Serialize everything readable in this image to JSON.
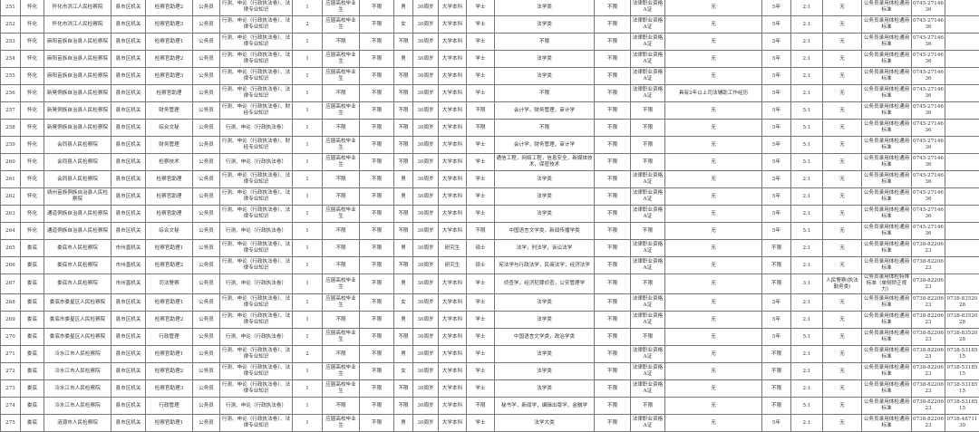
{
  "table": {
    "rows": [
      [
        "251",
        "怀化",
        "怀化市洪江人民检察院",
        "县市区机关",
        "检察官助理2",
        "公务员",
        "行测、申论（行政执法卷）、法律专业知识",
        "1",
        "应届高校毕业生",
        "不限",
        "男",
        "30周岁",
        "大学本科",
        "学士",
        "法学类",
        "不限",
        "法律职业资格A证",
        "无",
        "5年",
        "2:1",
        "无",
        "公务员录用体检通用标准",
        "0745-2714636",
        ""
      ],
      [
        "252",
        "怀化",
        "怀化市洪江人民检察院",
        "县市区机关",
        "检察官助理3",
        "公务员",
        "行测、申论（行政执法卷）、法律专业知识",
        "2",
        "应届高校毕业生",
        "不限",
        "女",
        "30周岁",
        "大学本科",
        "学士",
        "法学类",
        "不限",
        "法律职业资格A证",
        "无",
        "5年",
        "2:1",
        "无",
        "公务员录用体检通用标准",
        "0745-2714636",
        ""
      ],
      [
        "253",
        "怀化",
        "麻阳苗族自治县人民检察院",
        "县市区机关",
        "检察官助理1",
        "公务员",
        "行测、申论（行政执法卷）、法律专业知识",
        "1",
        "不限",
        "不限",
        "不限",
        "30周岁",
        "大学本科",
        "学士",
        "不限",
        "不限",
        "法律职业资格A证",
        "无",
        "5年",
        "2:1",
        "无",
        "公务员录用体检通用标准",
        "0745-2714636",
        ""
      ],
      [
        "254",
        "怀化",
        "麻阳苗族自治县人民检察院",
        "县市区机关",
        "检察官助理2",
        "公务员",
        "行测、申论（行政执法卷）、法律专业知识",
        "1",
        "应届高校毕业生",
        "不限",
        "男",
        "30周岁",
        "大学本科",
        "学士",
        "法学类",
        "不限",
        "法律职业资格A证",
        "无",
        "5年",
        "2:1",
        "无",
        "公务员录用体检通用标准",
        "0745-2714636",
        ""
      ],
      [
        "255",
        "怀化",
        "麻阳苗族自治县人民检察院",
        "县市区机关",
        "检察官助理3",
        "公务员",
        "行测、申论（行政执法卷）、法律专业知识",
        "1",
        "应届高校毕业生",
        "不限",
        "不限",
        "30周岁",
        "大学本科",
        "学士",
        "法学类",
        "不限",
        "法律职业资格A证",
        "无",
        "5年",
        "2:1",
        "无",
        "公务员录用体检通用标准",
        "0745-2714636",
        ""
      ],
      [
        "256",
        "怀化",
        "新晃侗族自治县人民检察院",
        "县市区机关",
        "检察官助理",
        "公务员",
        "行测、申论（行政执法卷）、法律专业知识",
        "1",
        "不限",
        "不限",
        "不限",
        "30周岁",
        "大学本科",
        "学士",
        "不限",
        "不限",
        "法律职业资格A证",
        "具有2年以上司法辅助工作经历",
        "5年",
        "2:1",
        "无",
        "公务员录用体检通用标准",
        "0745-2714636",
        ""
      ],
      [
        "257",
        "怀化",
        "新晃侗族自治县人民检察院",
        "县市区机关",
        "财务管理",
        "公务员",
        "行测、申论（行政执法卷）、财经专业知识",
        "1",
        "应届高校毕业生",
        "不限",
        "不限",
        "30周岁",
        "大学本科",
        "不限",
        "会计学，财务管理，审计学",
        "不限",
        "不限",
        "无",
        "5年",
        "5:1",
        "无",
        "公务员录用体检通用标准",
        "0745-2714636",
        ""
      ],
      [
        "258",
        "怀化",
        "新晃侗族自治县人民检察院",
        "县市区机关",
        "综合文秘",
        "公务员",
        "行测、申论（行政执法卷）",
        "1",
        "不限",
        "不限",
        "不限",
        "30周岁",
        "大学本科",
        "不限",
        "不限",
        "不限",
        "不限",
        "无",
        "5年",
        "5:1",
        "无",
        "公务员录用体检通用标准",
        "0745-2714636",
        ""
      ],
      [
        "259",
        "怀化",
        "会同县人民检察院",
        "县市区机关",
        "财务管理",
        "公务员",
        "行测、申论（行政执法卷）、财经专业知识",
        "1",
        "应届高校毕业生",
        "不限",
        "不限",
        "30周岁",
        "大学本科",
        "学士",
        "会计学，财务管理，审计学",
        "不限",
        "不限",
        "无",
        "5年",
        "5:1",
        "无",
        "公务员录用体检通用标准",
        "0745-2714636",
        ""
      ],
      [
        "260",
        "怀化",
        "会同县人民检察院",
        "县市区机关",
        "检察技术",
        "公务员",
        "行测、申论（行政执法卷）",
        "1",
        "应届高校毕业生",
        "不限",
        "不限",
        "30周岁",
        "大学本科",
        "学士",
        "通信工程，网络工程，信息安全，新媒体技术，保密技术",
        "不限",
        "不限",
        "无",
        "5年",
        "5:1",
        "无",
        "公务员录用体检通用标准",
        "0745-2714636",
        ""
      ],
      [
        "261",
        "怀化",
        "会同县人民检察院",
        "县市区机关",
        "检察官助理",
        "公务员",
        "行测、申论（行政执法卷）、法律专业知识",
        "1",
        "不限",
        "不限",
        "男",
        "30周岁",
        "大学本科",
        "学士",
        "法学类",
        "不限",
        "法律职业资格A证",
        "无",
        "5年",
        "2:1",
        "无",
        "公务员录用体检通用标准",
        "0745-2714636",
        ""
      ],
      [
        "262",
        "怀化",
        "靖州苗族侗族自治县人民检察院",
        "县市区机关",
        "检察官助理",
        "公务员",
        "行测、申论（行政执法卷）、法律专业知识",
        "1",
        "不限",
        "不限",
        "男",
        "30周岁",
        "大学本科",
        "学士",
        "法学类",
        "不限",
        "法律职业资格A证",
        "无",
        "5年",
        "2:1",
        "无",
        "公务员录用体检通用标准",
        "0745-2714636",
        ""
      ],
      [
        "263",
        "怀化",
        "通道侗族自治县人民检察院",
        "县市区机关",
        "检察官助理",
        "公务员",
        "行测、申论（行政执法卷）、法律专业知识",
        "1",
        "应届高校毕业生",
        "不限",
        "不限",
        "30周岁",
        "大学本科",
        "学士",
        "法学类",
        "不限",
        "法律职业资格A证",
        "无",
        "5年",
        "2:1",
        "无",
        "公务员录用体检通用标准",
        "0745-2714636",
        ""
      ],
      [
        "264",
        "怀化",
        "通道侗族自治县人民检察院",
        "县市区机关",
        "综合文秘",
        "公务员",
        "行测、申论（行政执法卷）",
        "1",
        "不限",
        "不限",
        "不限",
        "30周岁",
        "大学本科",
        "不限",
        "中国语言文学类，新闻传播学类",
        "不限",
        "不限",
        "无",
        "5年",
        "5:1",
        "无",
        "公务员录用体检通用标准",
        "0745-2714636",
        ""
      ],
      [
        "265",
        "娄底",
        "娄底市人民检察院",
        "市州直机关",
        "检察官助理1",
        "公务员",
        "行测、申论（行政执法卷）、法律专业知识",
        "1",
        "不限",
        "不限",
        "男",
        "30周岁",
        "研究生",
        "硕士",
        "法学，刑法学，诉讼法学",
        "不限",
        "法律职业资格A证",
        "无",
        "不限",
        "2:1",
        "无",
        "公务员录用体检通用标准",
        "0738-8220623",
        ""
      ],
      [
        "266",
        "娄底",
        "娄底市人民检察院",
        "市州直机关",
        "检察官助理2",
        "公务员",
        "行测、申论（行政执法卷）、法律专业知识",
        "1",
        "不限",
        "不限",
        "不限",
        "30周岁",
        "研究生",
        "硕士",
        "宪法学与行政法学，民商法学，经济法学",
        "不限",
        "法律职业资格A证",
        "无",
        "不限",
        "2:1",
        "无",
        "公务员录用体检通用标准",
        "0738-8220623",
        ""
      ],
      [
        "267",
        "娄底",
        "娄底市人民检察院",
        "市州直机关",
        "司法警察",
        "公务员",
        "行测、申论（行政执法卷）",
        "1",
        "应届高校毕业生",
        "不限",
        "男",
        "30周岁",
        "大学本科",
        "学士",
        "侦查学，经济犯罪侦查，公安管理学",
        "不限",
        "不限",
        "无",
        "不限",
        "3:1",
        "人民警察(执法勤务类)",
        "公务员录用体检特殊标准（单侧矫正视力）",
        "0738-8220623",
        ""
      ],
      [
        "268",
        "娄底",
        "娄底市娄星区人民检察院",
        "县市区机关",
        "检察官助理1",
        "公务员",
        "行测、申论（行政执法卷）、法律专业知识",
        "1",
        "应届高校毕业生",
        "不限",
        "女",
        "30周岁",
        "大学本科",
        "学士",
        "法学类",
        "不限",
        "法律职业资格A证",
        "无",
        "5年",
        "2:1",
        "无",
        "公务员录用体检通用标准",
        "0738-8220623",
        "0738-8352028"
      ],
      [
        "269",
        "娄底",
        "娄底市娄星区人民检察院",
        "县市区机关",
        "检察官助理2",
        "公务员",
        "行测、申论（行政执法卷）、法律专业知识",
        "1",
        "不限",
        "不限",
        "男",
        "30周岁",
        "大学本科",
        "学士",
        "法学类",
        "不限",
        "法律职业资格A证",
        "无",
        "5年",
        "2:1",
        "无",
        "公务员录用体检通用标准",
        "0738-8220623",
        "0738-8352028"
      ],
      [
        "270",
        "娄底",
        "娄底市娄星区人民检察院",
        "县市区机关",
        "行政管理",
        "公务员",
        "行测、申论（行政执法卷）",
        "1",
        "应届高校毕业生",
        "不限",
        "不限",
        "30周岁",
        "大学本科",
        "学士",
        "中国语言文学类，政治学类",
        "不限",
        "不限",
        "无",
        "5年",
        "5:1",
        "无",
        "公务员录用体检通用标准",
        "0738-8220623",
        "0738-8352028"
      ],
      [
        "271",
        "娄底",
        "冷水江市人民检察院",
        "县市区机关",
        "检察官助理1",
        "公务员",
        "行测、申论（行政执法卷）、法律专业知识",
        "2",
        "不限",
        "不限",
        "男",
        "30周岁",
        "大学本科",
        "学士",
        "法学类",
        "不限",
        "法律职业资格A证",
        "无",
        "不限",
        "2:1",
        "无",
        "公务员录用体检通用标准",
        "0738-8220623",
        "0738-5318515"
      ],
      [
        "272",
        "娄底",
        "冷水江市人民检察院",
        "县市区机关",
        "检察官助理2",
        "公务员",
        "行测、申论（行政执法卷）、法律专业知识",
        "1",
        "应届高校毕业生",
        "不限",
        "女",
        "30周岁",
        "大学本科",
        "学士",
        "法学类",
        "不限",
        "法律职业资格A证",
        "无",
        "不限",
        "2:1",
        "无",
        "公务员录用体检通用标准",
        "0738-8220623",
        "0738-5318515"
      ],
      [
        "273",
        "娄底",
        "冷水江市人民检察院",
        "县市区机关",
        "检察官助理3",
        "公务员",
        "行测、申论（行政执法卷）、法律专业知识",
        "1",
        "应届高校毕业生",
        "不限",
        "不限",
        "30周岁",
        "大学本科",
        "学士",
        "法学类",
        "不限",
        "法律职业资格A证",
        "无",
        "不限",
        "2:1",
        "无",
        "公务员录用体检通用标准",
        "0738-8220623",
        "0738-5318515"
      ],
      [
        "274",
        "娄底",
        "冷水江市人民检察院",
        "县市区机关",
        "行政管理",
        "公务员",
        "行测、申论（行政执法卷）",
        "1",
        "不限",
        "不限",
        "不限",
        "30周岁",
        "大学本科",
        "不限",
        "秘书学，新闻学，编辑出版学，金融学",
        "不限",
        "不限",
        "无",
        "不限",
        "5:1",
        "无",
        "公务员录用体检通用标准",
        "0738-8220623",
        "0738-5318515"
      ],
      [
        "275",
        "娄底",
        "涟源市人民检察院",
        "县市区机关",
        "检察官助理1",
        "公务员",
        "行测、申论（行政执法卷）、法律专业知识",
        "1",
        "应届高校毕业生",
        "不限",
        "男",
        "30周岁",
        "大学本科",
        "学士",
        "法学大类",
        "不限",
        "法律职业资格A证",
        "无",
        "5年",
        "2:1",
        "无",
        "公务员录用体检通用标准",
        "0738-8220623",
        "0738-4871139"
      ]
    ]
  }
}
